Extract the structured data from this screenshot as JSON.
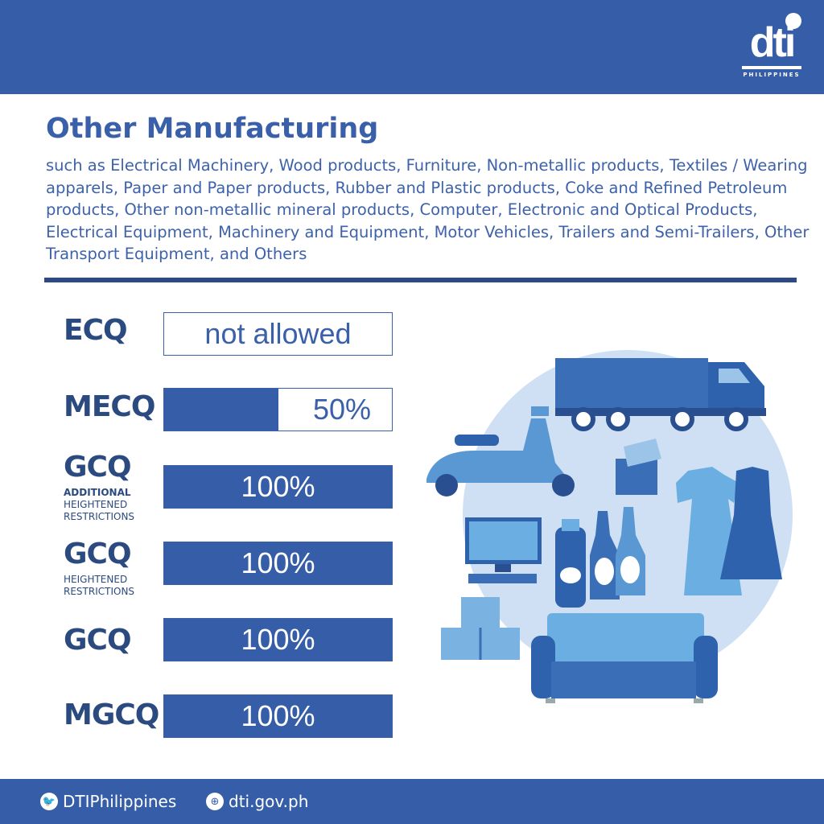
{
  "logo": {
    "text": "dti",
    "subtitle": "PHILIPPINES"
  },
  "title": "Other Manufacturing",
  "description": "such as Electrical Machinery, Wood products, Furniture, Non-metallic products, Textiles / Wearing apparels, Paper and Paper products, Rubber and Plastic products, Coke and Refined Petroleum products, Other non-metallic mineral products, Computer, Electronic and Optical Products, Electrical Equipment, Machinery and Equipment, Motor Vehicles, Trailers and Semi-Trailers, Other Transport Equipment, and Others",
  "levels": [
    {
      "label": "ECQ",
      "value_text": "not allowed",
      "percent": 0
    },
    {
      "label": "MECQ",
      "value_text": "50%",
      "percent": 50
    },
    {
      "label": "GCQ",
      "sub_bold": "ADDITIONAL",
      "sub": "HEIGHTENED RESTRICTIONS",
      "value_text": "100%",
      "percent": 100
    },
    {
      "label": "GCQ",
      "sub": "HEIGHTENED RESTRICTIONS",
      "value_text": "100%",
      "percent": 100
    },
    {
      "label": "GCQ",
      "value_text": "100%",
      "percent": 100
    },
    {
      "label": "MGCQ",
      "value_text": "100%",
      "percent": 100
    }
  ],
  "footer": {
    "twitter": "DTIPhilippines",
    "website": "dti.gov.ph"
  },
  "colors": {
    "primary": "#365ea8",
    "dark": "#2b4a7f",
    "light_circle": "#cfe0f4"
  }
}
